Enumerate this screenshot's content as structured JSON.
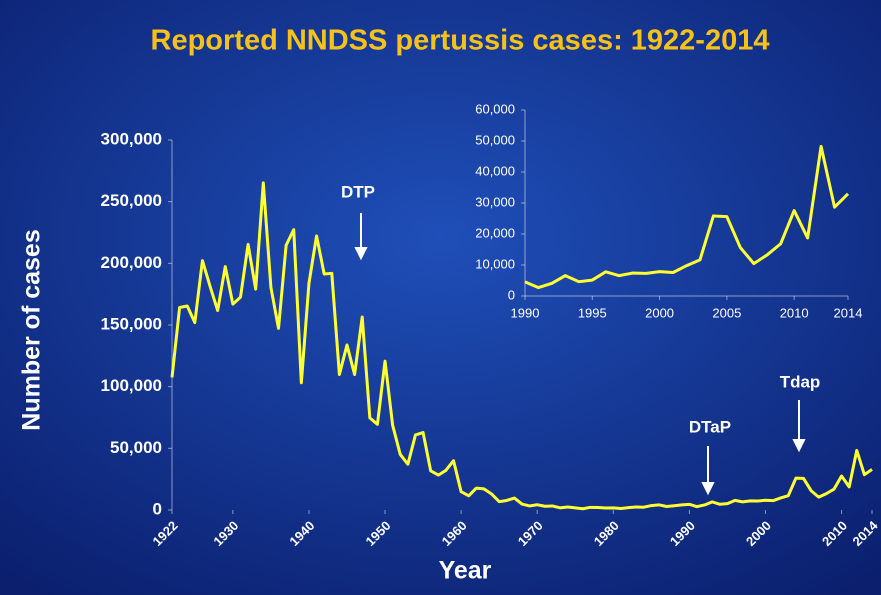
{
  "chart_data": [
    {
      "type": "line",
      "title": "Reported  NNDSS pertussis cases: 1922-2014",
      "xlabel": "Year",
      "ylabel": "Number of cases",
      "color": "#ffff33",
      "annotations": [
        "DTP",
        "DTaP",
        "Tdap"
      ],
      "x": [
        1922,
        1923,
        1924,
        1925,
        1926,
        1927,
        1928,
        1929,
        1930,
        1931,
        1932,
        1933,
        1934,
        1935,
        1936,
        1937,
        1938,
        1939,
        1940,
        1941,
        1942,
        1943,
        1944,
        1945,
        1946,
        1947,
        1948,
        1949,
        1950,
        1951,
        1952,
        1953,
        1954,
        1955,
        1956,
        1957,
        1958,
        1959,
        1960,
        1961,
        1962,
        1963,
        1964,
        1965,
        1966,
        1967,
        1968,
        1969,
        1970,
        1971,
        1972,
        1973,
        1974,
        1975,
        1976,
        1977,
        1978,
        1979,
        1980,
        1981,
        1982,
        1983,
        1984,
        1985,
        1986,
        1987,
        1988,
        1989,
        1990,
        1991,
        1992,
        1993,
        1994,
        1995,
        1996,
        1997,
        1998,
        1999,
        2000,
        2001,
        2002,
        2003,
        2004,
        2005,
        2006,
        2007,
        2008,
        2009,
        2010,
        2011,
        2012,
        2013,
        2014
      ],
      "values": [
        107473,
        164191,
        165418,
        152003,
        202210,
        181411,
        161799,
        197371,
        166914,
        172559,
        215343,
        179135,
        265269,
        180518,
        147237,
        214652,
        227319,
        103188,
        183866,
        222202,
        191383,
        191890,
        109873,
        133792,
        109860,
        156517,
        74715,
        69479,
        120718,
        68687,
        45030,
        37129,
        60886,
        62786,
        31732,
        28295,
        32148,
        40005,
        14809,
        11468,
        17749,
        17135,
        13005,
        6799,
        7717,
        9718,
        4810,
        3285,
        4249,
        3036,
        3287,
        1759,
        2402,
        1738,
        1010,
        2177,
        2063,
        1623,
        1730,
        1248,
        1895,
        2463,
        2276,
        3589,
        4195,
        2823,
        3450,
        4157,
        4570,
        2719,
        4083,
        6586,
        4617,
        5137,
        7796,
        6564,
        7405,
        7288,
        7867,
        7580,
        9771,
        11647,
        25827,
        25616,
        15632,
        10454,
        13278,
        16858,
        27550,
        18719,
        48277,
        28639,
        32971
      ],
      "xlim": [
        1922,
        2014
      ],
      "xticks": [
        1922,
        1930,
        1940,
        1950,
        1960,
        1970,
        1980,
        1990,
        2000,
        2010,
        2014
      ],
      "ylim": [
        0,
        300000
      ],
      "yticks": [
        0,
        {
          "value": 50000,
          "label": "50,000"
        },
        {
          "value": 100000,
          "label": "100,000"
        },
        {
          "value": 150000,
          "label": "150,000"
        },
        {
          "value": 200000,
          "label": "200,000"
        },
        {
          "value": 250000,
          "label": "250,000"
        },
        {
          "value": 300000,
          "label": "300,000"
        }
      ]
    },
    {
      "type": "line",
      "color": "#ffff33",
      "x": [
        1990,
        1991,
        1992,
        1993,
        1994,
        1995,
        1996,
        1997,
        1998,
        1999,
        2000,
        2001,
        2002,
        2003,
        2004,
        2005,
        2006,
        2007,
        2008,
        2009,
        2010,
        2011,
        2012,
        2013,
        2014
      ],
      "values": [
        4570,
        2719,
        4083,
        6586,
        4617,
        5137,
        7796,
        6564,
        7405,
        7288,
        7867,
        7580,
        9771,
        11647,
        25827,
        25616,
        15632,
        10454,
        13278,
        16858,
        27550,
        18719,
        48277,
        28639,
        32971
      ],
      "xlim": [
        1990,
        2014
      ],
      "xticks": [
        1990,
        1995,
        2000,
        2005,
        2010,
        2014
      ],
      "ylim": [
        0,
        60000
      ],
      "yticks": [
        0,
        {
          "value": 10000,
          "label": "10,000"
        },
        {
          "value": 20000,
          "label": "20,000"
        },
        {
          "value": 30000,
          "label": "30,000"
        },
        {
          "value": 40000,
          "label": "40,000"
        },
        {
          "value": 50000,
          "label": "50,000"
        },
        {
          "value": 60000,
          "label": "60,000"
        }
      ]
    }
  ]
}
